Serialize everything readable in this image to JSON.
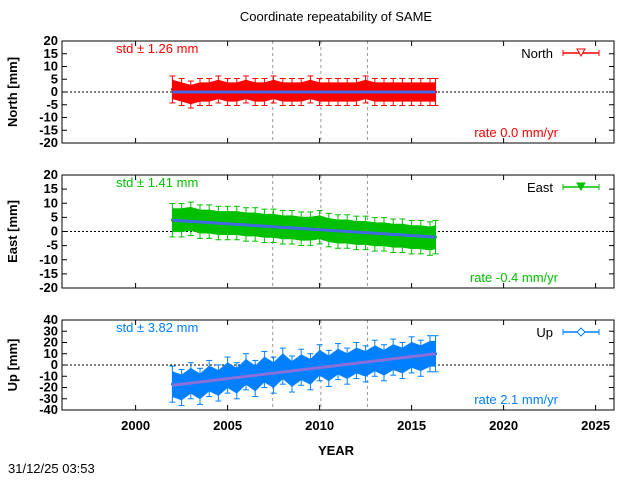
{
  "chart_data": [
    {
      "type": "scatter",
      "title": "Coordinate repeatability of SAME",
      "xlabel": "YEAR",
      "ylabel": "North [mm]",
      "xlim": [
        1996,
        2026
      ],
      "ylim": [
        -20,
        20
      ],
      "xticks": [
        "2000",
        "2005",
        "2010",
        "2015",
        "2020",
        "2025"
      ],
      "yticks": [
        "20",
        "15",
        "10",
        "5",
        "0",
        "-5",
        "-10",
        "-15",
        "-20"
      ],
      "ytick_values": [
        20,
        15,
        10,
        5,
        0,
        -5,
        -10,
        -15,
        -20
      ],
      "std_label": "std ± 1.26 mm",
      "rate_label": "rate  0.0 mm/yr",
      "std": 1.26,
      "rate": 0.0,
      "color": "#ff0000",
      "fit_color": "#4169e1",
      "marker": "triangle-down-open",
      "series": [
        {
          "name": "North",
          "x": [
            2002.0,
            2002.5,
            2003.0,
            2003.5,
            2004.0,
            2004.5,
            2005.0,
            2005.5,
            2006.0,
            2006.5,
            2007.0,
            2007.5,
            2008.0,
            2008.5,
            2009.0,
            2009.5,
            2010.0,
            2010.5,
            2011.0,
            2011.5,
            2012.0,
            2012.5,
            2013.0,
            2013.5,
            2014.0,
            2014.5,
            2015.0,
            2015.5,
            2016.0,
            2016.3
          ],
          "y": [
            1,
            0,
            -1,
            0,
            0,
            1,
            0,
            0,
            1,
            0,
            0,
            1,
            0,
            0,
            0,
            1,
            0,
            0,
            0,
            0,
            0,
            1,
            0,
            0,
            0,
            0,
            0,
            0,
            0,
            0
          ]
        }
      ],
      "fit": {
        "x": [
          2002.0,
          2016.3
        ],
        "y": [
          0.0,
          0.0
        ]
      },
      "vlines": [
        2007.45,
        2010.07,
        2012.6
      ],
      "zero_line": true
    },
    {
      "type": "scatter",
      "ylabel": "East [mm]",
      "xlim": [
        1996,
        2026
      ],
      "ylim": [
        -20,
        20
      ],
      "yticks": [
        "20",
        "15",
        "10",
        "5",
        "0",
        "-5",
        "-10",
        "-15",
        "-20"
      ],
      "ytick_values": [
        20,
        15,
        10,
        5,
        0,
        -5,
        -10,
        -15,
        -20
      ],
      "std_label": "std ± 1.41 mm",
      "rate_label": "rate -0.4 mm/yr",
      "std": 1.41,
      "rate": -0.4,
      "color": "#00c000",
      "fit_color": "#4169e1",
      "marker": "triangle-down-filled",
      "series": [
        {
          "name": "East",
          "x": [
            2002.0,
            2002.5,
            2003.0,
            2003.5,
            2004.0,
            2004.5,
            2005.0,
            2005.5,
            2006.0,
            2006.5,
            2007.0,
            2007.5,
            2008.0,
            2008.5,
            2009.0,
            2009.5,
            2010.0,
            2010.5,
            2011.0,
            2011.5,
            2012.0,
            2012.5,
            2013.0,
            2013.5,
            2014.0,
            2014.5,
            2015.0,
            2015.5,
            2016.0,
            2016.3
          ],
          "y": [
            4,
            4,
            4.5,
            3.5,
            3.5,
            3,
            3,
            3,
            2.5,
            2.5,
            2,
            2,
            1.5,
            1.5,
            1,
            1,
            1.5,
            0.5,
            0,
            0,
            -0.5,
            -0.5,
            -1,
            -1,
            -1.5,
            -1.5,
            -2,
            -2,
            -2.5,
            -2
          ]
        }
      ],
      "fit": {
        "x": [
          2002.0,
          2016.3
        ],
        "y": [
          4.0,
          -2.0
        ]
      },
      "vlines": [
        2007.45,
        2010.07,
        2012.6
      ],
      "zero_line": true
    },
    {
      "type": "scatter",
      "ylabel": "Up [mm]",
      "xlim": [
        1996,
        2026
      ],
      "ylim": [
        -40,
        40
      ],
      "yticks": [
        "40",
        "30",
        "20",
        "10",
        "0",
        "-10",
        "-20",
        "-30",
        "-40"
      ],
      "ytick_values": [
        40,
        30,
        20,
        10,
        0,
        -10,
        -20,
        -30,
        -40
      ],
      "std_label": "std ± 3.82 mm",
      "rate_label": "rate  2.1 mm/yr",
      "std": 3.82,
      "rate": 2.1,
      "color": "#0080ff",
      "fit_color": "#8a6fd8",
      "marker": "diamond-open",
      "series": [
        {
          "name": "Up",
          "x": [
            2002.0,
            2002.5,
            2003.0,
            2003.5,
            2004.0,
            2004.5,
            2005.0,
            2005.5,
            2006.0,
            2006.5,
            2007.0,
            2007.5,
            2008.0,
            2008.5,
            2009.0,
            2009.5,
            2010.0,
            2010.5,
            2011.0,
            2011.5,
            2012.0,
            2012.5,
            2013.0,
            2013.5,
            2014.0,
            2014.5,
            2015.0,
            2015.5,
            2016.0,
            2016.3
          ],
          "y": [
            -17,
            -20,
            -14,
            -19,
            -12,
            -16,
            -9,
            -14,
            -6,
            -12,
            -4,
            -9,
            -1,
            -8,
            -2,
            -6,
            2,
            -3,
            3,
            -1,
            4,
            1,
            6,
            2,
            7,
            4,
            9,
            6,
            10,
            10
          ]
        }
      ],
      "fit": {
        "x": [
          2002.0,
          2016.3
        ],
        "y": [
          -18.0,
          10.0
        ]
      },
      "vlines": [
        2007.45,
        2010.07,
        2012.6
      ],
      "zero_line": true
    }
  ],
  "timestamp": "31/12/25 03:53"
}
